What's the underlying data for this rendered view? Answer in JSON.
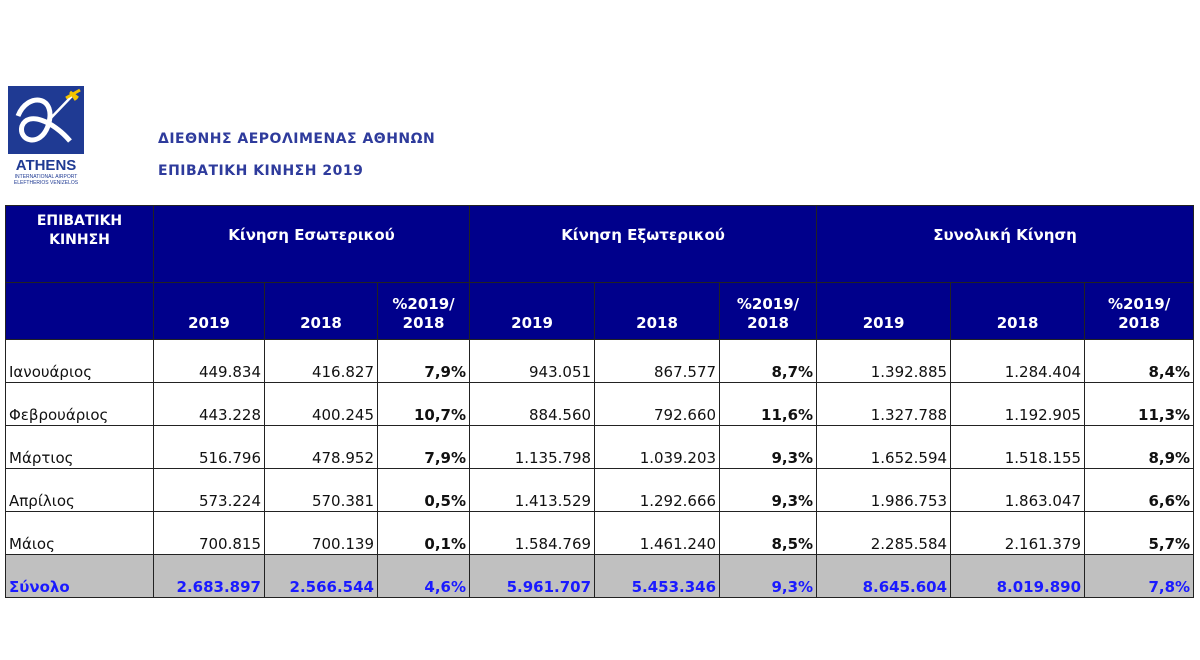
{
  "logo": {
    "name": "ATHENS",
    "line1": "INTERNATIONAL AIRPORT",
    "line2": "ELEFTHERIOS VENIZELOS",
    "colors": {
      "blue": "#1f3a93",
      "yellow": "#f5c400"
    }
  },
  "header": {
    "title": "ΔΙΕΘΝΗΣ ΑΕΡΟΛΙΜΕΝΑΣ ΑΘΗΝΩΝ",
    "subtitle": "ΕΠΙΒΑΤΙΚΗ ΚΙΝΗΣΗ 2019"
  },
  "table": {
    "corner": "ΕΠΙΒΑΤΙΚΗ ΚΙΝΗΣΗ",
    "groups": [
      "Κίνηση Εσωτερικού",
      "Κίνηση Εξωτερικού",
      "Συνολική Κίνηση"
    ],
    "subheaders": [
      "2019",
      "2018",
      "%2019/ 2018"
    ],
    "rows": [
      {
        "month": "Ιανουάριος",
        "values": [
          "449.834",
          "416.827",
          "7,9%",
          "943.051",
          "867.577",
          "8,7%",
          "1.392.885",
          "1.284.404",
          "8,4%"
        ]
      },
      {
        "month": "Φεβρουάριος",
        "values": [
          "443.228",
          "400.245",
          "10,7%",
          "884.560",
          "792.660",
          "11,6%",
          "1.327.788",
          "1.192.905",
          "11,3%"
        ]
      },
      {
        "month": "Μάρτιος",
        "values": [
          "516.796",
          "478.952",
          "7,9%",
          "1.135.798",
          "1.039.203",
          "9,3%",
          "1.652.594",
          "1.518.155",
          "8,9%"
        ]
      },
      {
        "month": "Απρίλιος",
        "values": [
          "573.224",
          "570.381",
          "0,5%",
          "1.413.529",
          "1.292.666",
          "9,3%",
          "1.986.753",
          "1.863.047",
          "6,6%"
        ]
      },
      {
        "month": "Μάιος",
        "values": [
          "700.815",
          "700.139",
          "0,1%",
          "1.584.769",
          "1.461.240",
          "8,5%",
          "2.285.584",
          "2.161.379",
          "5,7%"
        ]
      }
    ],
    "total": {
      "month": "Σύνολο",
      "values": [
        "2.683.897",
        "2.566.544",
        "4,6%",
        "5.961.707",
        "5.453.346",
        "9,3%",
        "8.645.604",
        "8.019.890",
        "7,8%"
      ]
    }
  }
}
